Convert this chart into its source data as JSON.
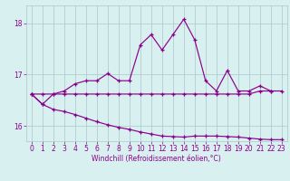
{
  "xlabel": "Windchill (Refroidissement éolien,°C)",
  "background_color": "#d8f0f0",
  "plot_bg_color": "#d8f0f0",
  "line_color": "#8b008b",
  "grid_color": "#a8c8c8",
  "xlim": [
    -0.5,
    23.5
  ],
  "ylim": [
    15.7,
    18.35
  ],
  "yticks": [
    16,
    17,
    18
  ],
  "xticks": [
    0,
    1,
    2,
    3,
    4,
    5,
    6,
    7,
    8,
    9,
    10,
    11,
    12,
    13,
    14,
    15,
    16,
    17,
    18,
    19,
    20,
    21,
    22,
    23
  ],
  "series1_x": [
    0,
    1,
    2,
    3,
    4,
    5,
    6,
    7,
    8,
    9,
    10,
    11,
    12,
    13,
    14,
    15,
    16,
    17,
    18,
    19,
    20,
    21,
    22
  ],
  "series1_y": [
    16.62,
    16.42,
    16.62,
    16.68,
    16.82,
    16.88,
    16.88,
    17.02,
    16.88,
    16.88,
    17.58,
    17.78,
    17.48,
    17.78,
    18.08,
    17.68,
    16.88,
    16.68,
    17.08,
    16.68,
    16.68,
    16.78,
    16.68
  ],
  "series2_x": [
    0,
    1,
    2,
    3,
    4,
    5,
    6,
    7,
    8,
    9,
    10,
    11,
    12,
    13,
    14,
    15,
    16,
    17,
    18,
    19,
    20,
    21,
    22,
    23
  ],
  "series2_y": [
    16.62,
    16.62,
    16.62,
    16.62,
    16.62,
    16.62,
    16.62,
    16.62,
    16.62,
    16.62,
    16.62,
    16.62,
    16.62,
    16.62,
    16.62,
    16.62,
    16.62,
    16.62,
    16.62,
    16.62,
    16.62,
    16.68,
    16.68,
    16.68
  ],
  "series3_x": [
    0,
    1,
    2,
    3,
    4,
    5,
    6,
    7,
    8,
    9,
    10,
    11,
    12,
    13,
    14,
    15,
    16,
    17,
    18,
    19,
    20,
    21,
    22,
    23
  ],
  "series3_y": [
    16.62,
    16.42,
    16.32,
    16.28,
    16.22,
    16.15,
    16.08,
    16.02,
    15.97,
    15.93,
    15.88,
    15.84,
    15.8,
    15.79,
    15.78,
    15.8,
    15.8,
    15.8,
    15.79,
    15.78,
    15.76,
    15.74,
    15.73,
    15.73
  ]
}
